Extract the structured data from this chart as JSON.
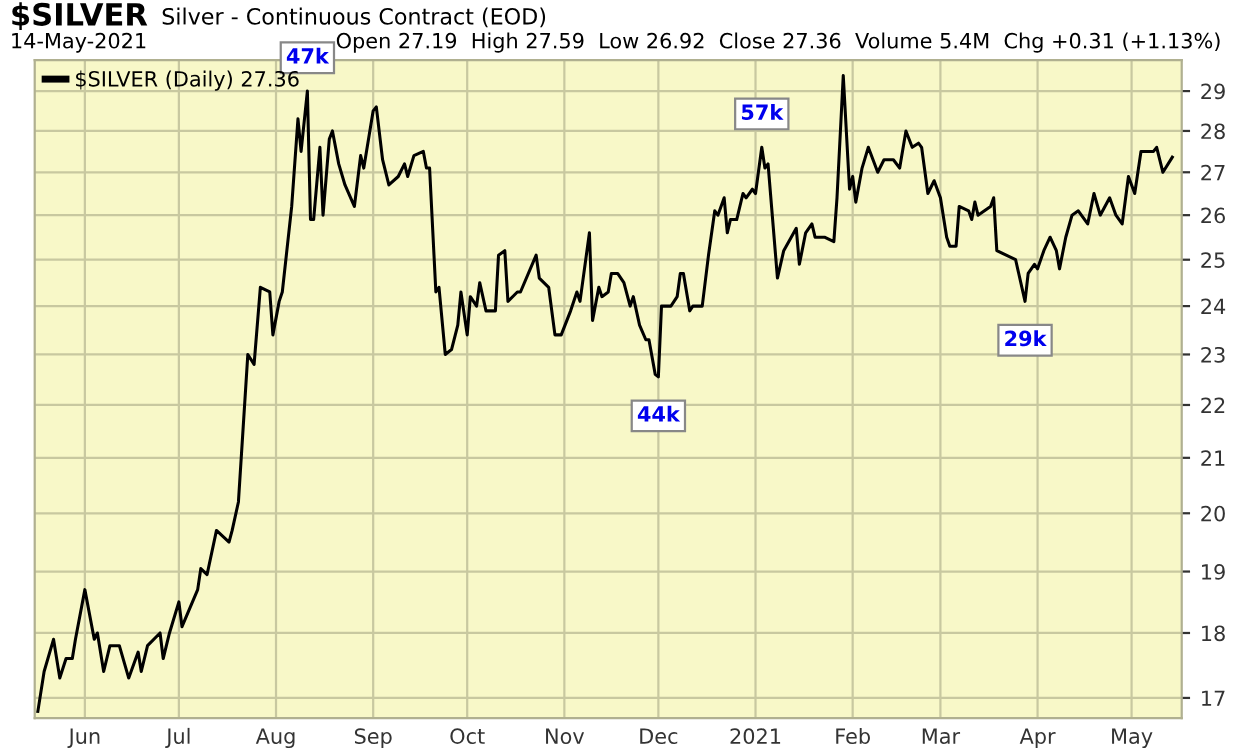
{
  "chart_data": {
    "type": "line",
    "title": "$SILVER",
    "subtitle": "Silver - Continuous Contract (EOD)",
    "annotations": [
      "14-May-2021",
      "Open 27.19  High 27.59  Low 26.92  Close 27.36  Volume 5.4M  Chg +0.31 (+1.13%)",
      {
        "text": "47k",
        "x": "2020-08-11",
        "y": 29.0
      },
      {
        "text": "57k",
        "x": "2021-01-03",
        "y": 27.6
      },
      {
        "text": "44k",
        "x": "2020-12-01",
        "y": 22.55
      },
      {
        "text": "29k",
        "x": "2021-03-28",
        "y": 24.1
      }
    ],
    "log": "y",
    "grid": true,
    "legend": "top left",
    "line_style": "solid",
    "marker": "none",
    "xlim": [
      "2020-05-16",
      "2021-05-17"
    ],
    "xticks": [
      {
        "value": "2020-06-01",
        "label": "Jun"
      },
      {
        "value": "2020-07-01",
        "label": "Jul"
      },
      {
        "value": "2020-08-01",
        "label": "Aug"
      },
      {
        "value": "2020-09-01",
        "label": "Sep"
      },
      {
        "value": "2020-10-01",
        "label": "Oct"
      },
      {
        "value": "2020-11-01",
        "label": "Nov"
      },
      {
        "value": "2020-12-01",
        "label": "Dec"
      },
      {
        "value": "2021-01-01",
        "label": "2021"
      },
      {
        "value": "2021-02-01",
        "label": "Feb"
      },
      {
        "value": "2021-03-01",
        "label": "Mar"
      },
      {
        "value": "2021-04-01",
        "label": "Apr"
      },
      {
        "value": "2021-05-01",
        "label": "May"
      }
    ],
    "ylim": [
      16.7,
      29.8
    ],
    "yticks": [
      17,
      18,
      19,
      20,
      21,
      22,
      23,
      24,
      25,
      26,
      27,
      28,
      29
    ],
    "series": [
      {
        "name": "$SILVER (Daily) 27.36",
        "color": "#000000",
        "x": [
          "2020-05-17",
          "2020-05-19",
          "2020-05-22",
          "2020-05-24",
          "2020-05-26",
          "2020-05-28",
          "2020-05-29",
          "2020-06-01",
          "2020-06-04",
          "2020-06-05",
          "2020-06-07",
          "2020-06-09",
          "2020-06-12",
          "2020-06-15",
          "2020-06-18",
          "2020-06-19",
          "2020-06-21",
          "2020-06-25",
          "2020-06-26",
          "2020-06-28",
          "2020-07-01",
          "2020-07-02",
          "2020-07-07",
          "2020-07-08",
          "2020-07-10",
          "2020-07-13",
          "2020-07-17",
          "2020-07-18",
          "2020-07-20",
          "2020-07-23",
          "2020-07-25",
          "2020-07-27",
          "2020-07-30",
          "2020-07-31",
          "2020-08-02",
          "2020-08-03",
          "2020-08-06",
          "2020-08-08",
          "2020-08-09",
          "2020-08-11",
          "2020-08-12",
          "2020-08-13",
          "2020-08-15",
          "2020-08-16",
          "2020-08-18",
          "2020-08-19",
          "2020-08-21",
          "2020-08-23",
          "2020-08-26",
          "2020-08-28",
          "2020-08-29",
          "2020-09-01",
          "2020-09-02",
          "2020-09-04",
          "2020-09-06",
          "2020-09-09",
          "2020-09-11",
          "2020-09-12",
          "2020-09-14",
          "2020-09-17",
          "2020-09-18",
          "2020-09-19",
          "2020-09-21",
          "2020-09-22",
          "2020-09-24",
          "2020-09-26",
          "2020-09-28",
          "2020-09-29",
          "2020-10-01",
          "2020-10-02",
          "2020-10-04",
          "2020-10-05",
          "2020-10-07",
          "2020-10-10",
          "2020-10-11",
          "2020-10-13",
          "2020-10-14",
          "2020-10-17",
          "2020-10-18",
          "2020-10-23",
          "2020-10-24",
          "2020-10-27",
          "2020-10-29",
          "2020-10-31",
          "2020-11-03",
          "2020-11-05",
          "2020-11-06",
          "2020-11-09",
          "2020-11-10",
          "2020-11-12",
          "2020-11-13",
          "2020-11-15",
          "2020-11-16",
          "2020-11-18",
          "2020-11-20",
          "2020-11-22",
          "2020-11-23",
          "2020-11-25",
          "2020-11-27",
          "2020-11-28",
          "2020-11-30",
          "2020-12-01",
          "2020-12-02",
          "2020-12-05",
          "2020-12-07",
          "2020-12-08",
          "2020-12-09",
          "2020-12-11",
          "2020-12-12",
          "2020-12-15",
          "2020-12-17",
          "2020-12-19",
          "2020-12-20",
          "2020-12-22",
          "2020-12-23",
          "2020-12-24",
          "2020-12-26",
          "2020-12-28",
          "2020-12-29",
          "2020-12-31",
          "2021-01-01",
          "2021-01-03",
          "2021-01-04",
          "2021-01-05",
          "2021-01-08",
          "2021-01-10",
          "2021-01-14",
          "2021-01-15",
          "2021-01-17",
          "2021-01-19",
          "2021-01-20",
          "2021-01-23",
          "2021-01-26",
          "2021-01-27",
          "2021-01-29",
          "2021-01-31",
          "2021-02-01",
          "2021-02-02",
          "2021-02-04",
          "2021-02-06",
          "2021-02-09",
          "2021-02-11",
          "2021-02-14",
          "2021-02-16",
          "2021-02-18",
          "2021-02-20",
          "2021-02-22",
          "2021-02-23",
          "2021-02-25",
          "2021-02-27",
          "2021-03-01",
          "2021-03-03",
          "2021-03-04",
          "2021-03-06",
          "2021-03-07",
          "2021-03-10",
          "2021-03-11",
          "2021-03-12",
          "2021-03-13",
          "2021-03-17",
          "2021-03-18",
          "2021-03-19",
          "2021-03-22",
          "2021-03-25",
          "2021-03-28",
          "2021-03-29",
          "2021-03-31",
          "2021-04-01",
          "2021-04-03",
          "2021-04-05",
          "2021-04-07",
          "2021-04-08",
          "2021-04-10",
          "2021-04-12",
          "2021-04-14",
          "2021-04-17",
          "2021-04-19",
          "2021-04-21",
          "2021-04-24",
          "2021-04-26",
          "2021-04-28",
          "2021-04-30",
          "2021-05-02",
          "2021-05-04",
          "2021-05-08",
          "2021-05-09",
          "2021-05-11",
          "2021-05-14"
        ],
        "values": [
          16.8,
          17.4,
          17.9,
          17.3,
          17.6,
          17.6,
          17.9,
          18.7,
          17.9,
          18.0,
          17.4,
          17.8,
          17.8,
          17.3,
          17.7,
          17.4,
          17.8,
          18.0,
          17.6,
          18.0,
          18.5,
          18.1,
          18.7,
          19.05,
          18.95,
          19.7,
          19.5,
          19.7,
          20.2,
          23.0,
          22.8,
          24.4,
          24.3,
          23.4,
          24.1,
          24.3,
          26.2,
          28.3,
          27.5,
          29.0,
          25.9,
          25.9,
          27.6,
          26.0,
          27.8,
          28.0,
          27.2,
          26.7,
          26.2,
          27.4,
          27.1,
          28.5,
          28.6,
          27.3,
          26.7,
          26.9,
          27.2,
          26.9,
          27.4,
          27.5,
          27.1,
          27.1,
          24.3,
          24.4,
          23.0,
          23.1,
          23.6,
          24.3,
          23.4,
          24.2,
          24.0,
          24.5,
          23.9,
          23.9,
          25.1,
          25.2,
          24.1,
          24.3,
          24.3,
          25.1,
          24.6,
          24.4,
          23.4,
          23.4,
          23.9,
          24.3,
          24.1,
          25.6,
          23.7,
          24.4,
          24.2,
          24.3,
          24.7,
          24.7,
          24.5,
          24.0,
          24.2,
          23.6,
          23.3,
          23.3,
          22.6,
          22.55,
          24.0,
          24.0,
          24.2,
          24.7,
          24.7,
          23.9,
          24.0,
          24.0,
          25.1,
          26.1,
          26.0,
          26.4,
          25.6,
          25.9,
          25.9,
          26.5,
          26.4,
          26.6,
          26.5,
          27.6,
          27.1,
          27.2,
          24.6,
          25.2,
          25.7,
          24.9,
          25.6,
          25.8,
          25.5,
          25.5,
          25.4,
          26.4,
          29.4,
          26.6,
          26.9,
          26.3,
          27.1,
          27.6,
          27.0,
          27.3,
          27.3,
          27.1,
          28.0,
          27.6,
          27.7,
          27.6,
          26.5,
          26.8,
          26.4,
          25.5,
          25.3,
          25.3,
          26.2,
          26.1,
          25.9,
          26.3,
          26.0,
          26.2,
          26.4,
          25.2,
          25.1,
          25.0,
          24.1,
          24.7,
          24.9,
          24.8,
          25.2,
          25.5,
          25.2,
          24.8,
          25.5,
          26.0,
          26.1,
          25.8,
          26.5,
          26.0,
          26.4,
          26.0,
          25.8,
          26.9,
          26.5,
          27.5,
          27.5,
          27.6,
          27.0,
          27.36
        ]
      }
    ]
  }
}
